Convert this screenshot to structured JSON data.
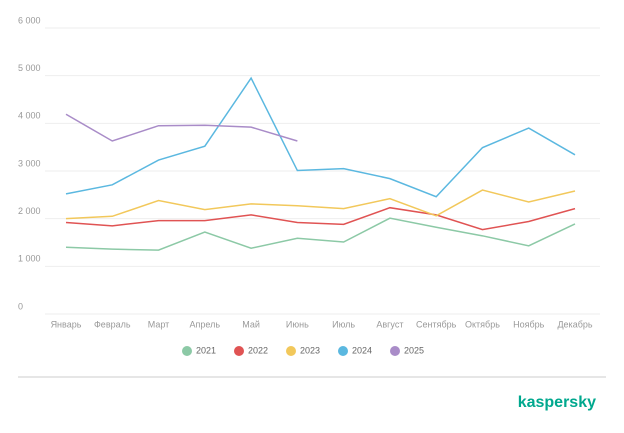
{
  "chart_data": {
    "type": "line",
    "categories": [
      "Январь",
      "Февраль",
      "Март",
      "Апрель",
      "Май",
      "Июнь",
      "Июль",
      "Август",
      "Сентябрь",
      "Октябрь",
      "Ноябрь",
      "Декабрь"
    ],
    "series": [
      {
        "name": "2021",
        "color": "#8cc9a6",
        "values": [
          1400,
          1360,
          1340,
          1720,
          1380,
          1590,
          1510,
          2010,
          1820,
          1640,
          1430,
          1890
        ]
      },
      {
        "name": "2022",
        "color": "#e05353",
        "values": [
          1920,
          1850,
          1960,
          1960,
          2080,
          1920,
          1880,
          2230,
          2080,
          1770,
          1940,
          2210
        ]
      },
      {
        "name": "2023",
        "color": "#f2c85b",
        "values": [
          2000,
          2050,
          2380,
          2190,
          2310,
          2270,
          2210,
          2420,
          2060,
          2600,
          2350,
          2580
        ]
      },
      {
        "name": "2024",
        "color": "#5bb8e0",
        "values": [
          2520,
          2710,
          3230,
          3520,
          4950,
          3010,
          3050,
          2840,
          2460,
          3490,
          3900,
          3340
        ]
      },
      {
        "name": "2025",
        "color": "#a98cc8",
        "values": [
          4190,
          3630,
          3950,
          3960,
          3920,
          3630,
          null,
          null,
          null,
          null,
          null,
          null
        ]
      }
    ],
    "ylim": [
      0,
      6000
    ],
    "yticks": [
      0,
      {
        "value": 1000,
        "label": "1 000"
      },
      {
        "value": 2000,
        "label": "2 000"
      },
      {
        "value": 3000,
        "label": "3 000"
      },
      {
        "value": 4000,
        "label": "4 000"
      },
      {
        "value": 5000,
        "label": "5 000"
      },
      {
        "value": 6000,
        "label": "6 000"
      }
    ],
    "grid": true
  },
  "brand": "kaspersky"
}
